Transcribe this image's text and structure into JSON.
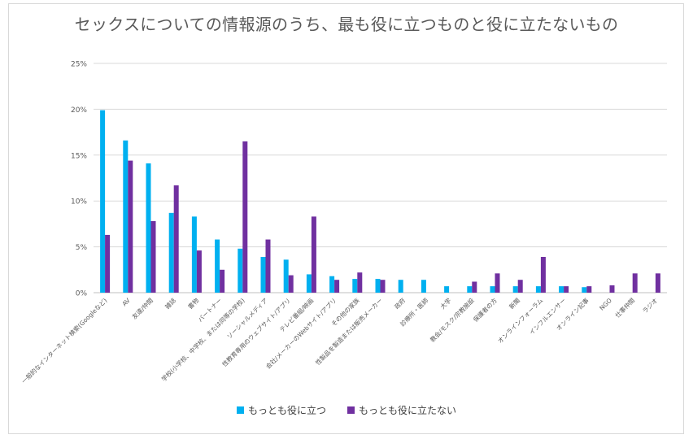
{
  "chart_data": {
    "type": "bar",
    "title": "セックスについての情報源のうち、最も役に立つものと役に立たないもの",
    "xlabel": "",
    "ylabel": "",
    "ylim": [
      0,
      25
    ],
    "yticks": [
      "0%",
      "5%",
      "10%",
      "15%",
      "20%",
      "25%"
    ],
    "ytick_values": [
      0,
      5,
      10,
      15,
      20,
      25
    ],
    "grid": true,
    "legend_position": "bottom",
    "categories": [
      "一般的なインターネット検索(Googleなど)",
      "AV",
      "友達/仲間",
      "雑誌",
      "書物",
      "パートナー",
      "学校(小学校、中学校、または同等の学校)",
      "ソーシャルメディア",
      "性教育専用のウェブサイト/アプリ",
      "テレビ番組/映画",
      "会社/メーカーのWebサイト/アプリ",
      "その他の家族",
      "性製品を製造または販売メーカー",
      "政府",
      "診療所・医師",
      "大学",
      "教会/モスク/宗教施設",
      "保護者の方",
      "新聞",
      "オンラインフォーラム",
      "インフルエンサー",
      "オンライン記事",
      "NGO",
      "仕事仲間",
      "ラジオ"
    ],
    "series": [
      {
        "name": "もっとも役に立つ",
        "color": "#00b0f0",
        "values": [
          19.9,
          16.6,
          14.1,
          8.7,
          8.3,
          5.8,
          4.8,
          3.9,
          3.6,
          2.0,
          1.8,
          1.5,
          1.5,
          1.4,
          1.4,
          0.7,
          0.7,
          0.7,
          0.7,
          0.7,
          0.7,
          0.6,
          0,
          0,
          0
        ]
      },
      {
        "name": "もっとも役に立たない",
        "color": "#7030a0",
        "values": [
          6.3,
          14.4,
          7.8,
          11.7,
          4.6,
          2.5,
          16.5,
          5.8,
          1.9,
          8.3,
          1.4,
          2.2,
          1.4,
          0,
          0,
          0,
          1.2,
          2.1,
          1.4,
          3.9,
          0.7,
          0.7,
          0.8,
          2.1,
          2.1
        ]
      }
    ]
  }
}
